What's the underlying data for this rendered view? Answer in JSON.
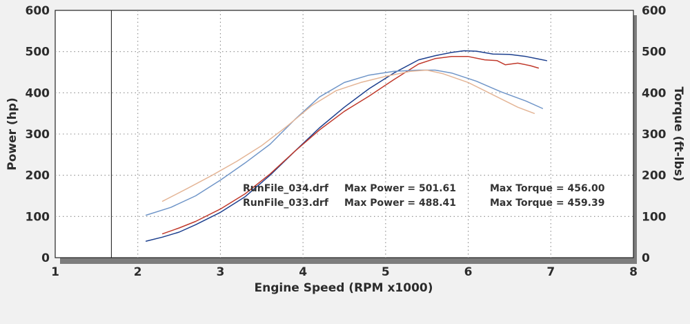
{
  "chart_data": {
    "type": "line",
    "xlabel": "Engine Speed (RPM x1000)",
    "ylabel_left": "Power (hp)",
    "ylabel_right": "Torque (ft-lbs)",
    "xlim": [
      1,
      8
    ],
    "ylim": [
      0,
      600
    ],
    "x_ticks": [
      "1",
      "2",
      "3",
      "4",
      "5",
      "6",
      "7",
      "8"
    ],
    "y_ticks_left": [
      "0",
      "100",
      "200",
      "300",
      "400",
      "500",
      "600"
    ],
    "y_ticks_right": [
      "0",
      "100",
      "200",
      "300",
      "400",
      "500",
      "600"
    ],
    "grid": true,
    "marker_line_x": 1.68,
    "annotations": [
      {
        "file": "RunFile_034.drf",
        "power": "Max Power = 501.61",
        "torque": "Max Torque = 456.00"
      },
      {
        "file": "RunFile_033.drf",
        "power": "Max Power = 488.41",
        "torque": "Max Torque = 459.39"
      }
    ],
    "series": [
      {
        "axis": "left",
        "color": "#1c3f8e",
        "x": [
          2.1,
          2.3,
          2.5,
          2.7,
          3.0,
          3.3,
          3.6,
          3.9,
          4.2,
          4.5,
          4.8,
          5.1,
          5.4,
          5.6,
          5.8,
          5.95,
          6.1,
          6.3,
          6.5,
          6.7,
          6.85,
          6.95
        ],
        "y": [
          40,
          50,
          62,
          80,
          110,
          148,
          200,
          258,
          315,
          365,
          410,
          448,
          480,
          490,
          498,
          502,
          501,
          494,
          493,
          488,
          482,
          478
        ]
      },
      {
        "axis": "left",
        "color": "#c0392b",
        "x": [
          2.3,
          2.5,
          2.7,
          3.0,
          3.3,
          3.6,
          3.9,
          4.2,
          4.5,
          4.8,
          5.1,
          5.4,
          5.6,
          5.8,
          6.0,
          6.2,
          6.35,
          6.45,
          6.6,
          6.75,
          6.85
        ],
        "y": [
          58,
          72,
          88,
          118,
          155,
          203,
          258,
          310,
          355,
          392,
          432,
          470,
          483,
          488,
          488,
          480,
          478,
          468,
          472,
          466,
          460
        ]
      },
      {
        "axis": "right",
        "color": "#6f95c8",
        "x": [
          2.1,
          2.4,
          2.7,
          3.0,
          3.3,
          3.6,
          3.9,
          4.2,
          4.5,
          4.8,
          5.1,
          5.4,
          5.6,
          5.8,
          6.1,
          6.4,
          6.7,
          6.9
        ],
        "y": [
          103,
          122,
          150,
          188,
          230,
          275,
          335,
          390,
          425,
          443,
          452,
          455,
          455,
          448,
          428,
          402,
          380,
          362
        ]
      },
      {
        "axis": "right",
        "color": "#e4b596",
        "x": [
          2.3,
          2.6,
          2.9,
          3.2,
          3.5,
          3.8,
          4.1,
          4.4,
          4.7,
          5.0,
          5.3,
          5.5,
          5.7,
          6.0,
          6.3,
          6.6,
          6.8
        ],
        "y": [
          137,
          168,
          200,
          234,
          272,
          318,
          368,
          405,
          425,
          440,
          452,
          455,
          446,
          425,
          395,
          365,
          350
        ]
      }
    ]
  }
}
